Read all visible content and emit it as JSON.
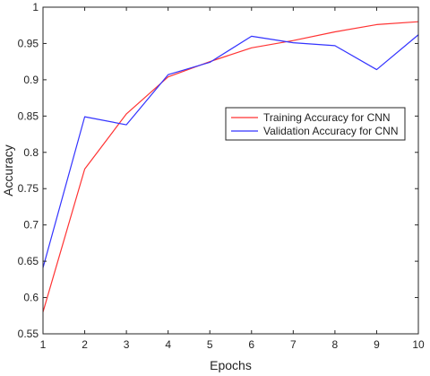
{
  "chart_data": {
    "type": "line",
    "xlabel": "Epochs",
    "ylabel": "Accuracy",
    "xlim": [
      1,
      10
    ],
    "ylim": [
      0.55,
      1
    ],
    "x_ticks": [
      1,
      2,
      3,
      4,
      5,
      6,
      7,
      8,
      9,
      10
    ],
    "y_ticks": [
      0.55,
      0.6,
      0.65,
      0.7,
      0.75,
      0.8,
      0.85,
      0.9,
      0.95,
      1
    ],
    "x_tick_labels": [
      "1",
      "2",
      "3",
      "4",
      "5",
      "6",
      "7",
      "8",
      "9",
      "10"
    ],
    "y_tick_labels": [
      "0.55",
      "0.6",
      "0.65",
      "0.7",
      "0.75",
      "0.8",
      "0.85",
      "0.9",
      "0.95",
      "1"
    ],
    "x": [
      1,
      2,
      3,
      4,
      5,
      6,
      7,
      8,
      9,
      10
    ],
    "grid": false,
    "legend_position": "right",
    "series": [
      {
        "name": "Training Accuracy for CNN",
        "color": "#ff3333",
        "values": [
          0.58,
          0.777,
          0.853,
          0.904,
          0.925,
          0.944,
          0.954,
          0.966,
          0.976,
          0.98
        ]
      },
      {
        "name": "Validation Accuracy for CNN",
        "color": "#3333ff",
        "values": [
          0.641,
          0.849,
          0.838,
          0.907,
          0.924,
          0.96,
          0.951,
          0.947,
          0.914,
          0.962
        ]
      }
    ]
  }
}
